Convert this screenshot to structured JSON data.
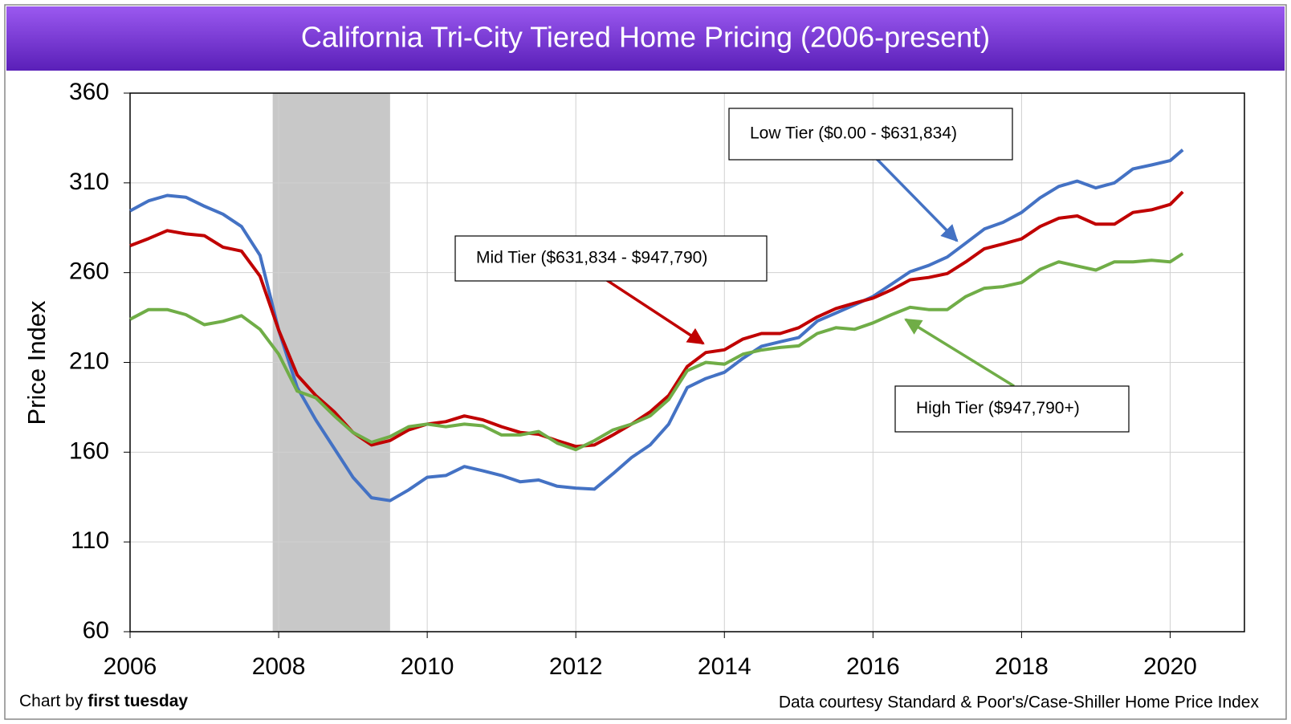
{
  "chart_data": {
    "type": "line",
    "title": "California Tri-City Tiered Home Pricing (2006-present)",
    "ylabel": "Price Index",
    "xlim": [
      2006,
      2021
    ],
    "xticks": [
      2006,
      2008,
      2010,
      2012,
      2014,
      2016,
      2018,
      2020
    ],
    "ylim": [
      60,
      360
    ],
    "yticks": [
      60,
      110,
      160,
      210,
      260,
      310,
      360
    ],
    "grid": true,
    "recession": [
      2007.92,
      2009.5
    ],
    "x": [
      2006,
      2006.25,
      2006.5,
      2006.75,
      2007,
      2007.25,
      2007.5,
      2007.75,
      2008,
      2008.25,
      2008.5,
      2008.75,
      2009,
      2009.25,
      2009.5,
      2009.75,
      2010,
      2010.25,
      2010.5,
      2010.75,
      2011,
      2011.25,
      2011.5,
      2011.75,
      2012,
      2012.25,
      2012.5,
      2012.75,
      2013,
      2013.25,
      2013.5,
      2013.75,
      2014,
      2014.25,
      2014.5,
      2014.75,
      2015,
      2015.25,
      2015.5,
      2015.75,
      2016,
      2016.25,
      2016.5,
      2016.75,
      2017,
      2017.25,
      2017.5,
      2017.75,
      2018,
      2018.25,
      2018.5,
      2018.75,
      2019,
      2019.25,
      2019.5,
      2019.75,
      2020,
      2020.17
    ],
    "series": [
      {
        "name": "Low Tier ($0.00 - $631,834)",
        "color": "#4472c4",
        "values": [
          294.4,
          300,
          303,
          302,
          297,
          292.6,
          285.7,
          269.6,
          228,
          196,
          178,
          162,
          146,
          134.6,
          133,
          139,
          146,
          147,
          152,
          149.6,
          147,
          143.5,
          144.5,
          141,
          140,
          139.4,
          148,
          157,
          164,
          175.6,
          196,
          201,
          204.5,
          212.3,
          219,
          221.5,
          223.8,
          233,
          237.5,
          242,
          246.7,
          253.6,
          260.5,
          264,
          268.7,
          276.5,
          284.3,
          288,
          293.5,
          301.7,
          308,
          311,
          307.2,
          310,
          317.8,
          320,
          322.4,
          328.4
        ]
      },
      {
        "name": "Mid Tier ($631,834 - $947,790)",
        "color": "#c00000",
        "values": [
          275,
          279,
          283.4,
          281.6,
          280.6,
          274.2,
          272,
          258,
          228,
          203,
          191.6,
          182.4,
          171,
          164,
          166.5,
          172.4,
          175.6,
          177,
          180.2,
          178,
          174.2,
          171,
          170,
          166.4,
          163.2,
          164,
          169.6,
          175.6,
          182.4,
          191.6,
          207.7,
          215.5,
          217,
          223,
          226.1,
          226.1,
          229.3,
          235.3,
          240,
          243,
          245.8,
          250.4,
          256,
          257.3,
          259.5,
          266,
          273.3,
          276,
          278.8,
          285.7,
          290.3,
          291.6,
          287,
          287,
          293.5,
          295,
          298,
          305
        ]
      },
      {
        "name": "High Tier ($947,790+)",
        "color": "#70ad47",
        "values": [
          234,
          239.4,
          239.4,
          236.6,
          231,
          232.9,
          236,
          228.4,
          214.6,
          194,
          190.3,
          180.2,
          171,
          165.5,
          168.7,
          174.2,
          175.6,
          174.2,
          175.6,
          174.7,
          169.6,
          169.6,
          171.5,
          165,
          161.4,
          166.4,
          172.4,
          175.6,
          180.2,
          189.3,
          205.4,
          210,
          209,
          214.6,
          216.9,
          218.3,
          219.2,
          226.1,
          229.3,
          228.4,
          232,
          236.6,
          240.7,
          239.4,
          239.4,
          246.7,
          251.3,
          252.2,
          254.5,
          261.8,
          266,
          263.7,
          261.4,
          266,
          266,
          266.9,
          266,
          270.6
        ]
      }
    ],
    "credit_prefix": "Chart by",
    "credit_name": "first tuesday",
    "source": "Data courtesy Standard & Poor's/Case-Shiller Home Price Index"
  }
}
